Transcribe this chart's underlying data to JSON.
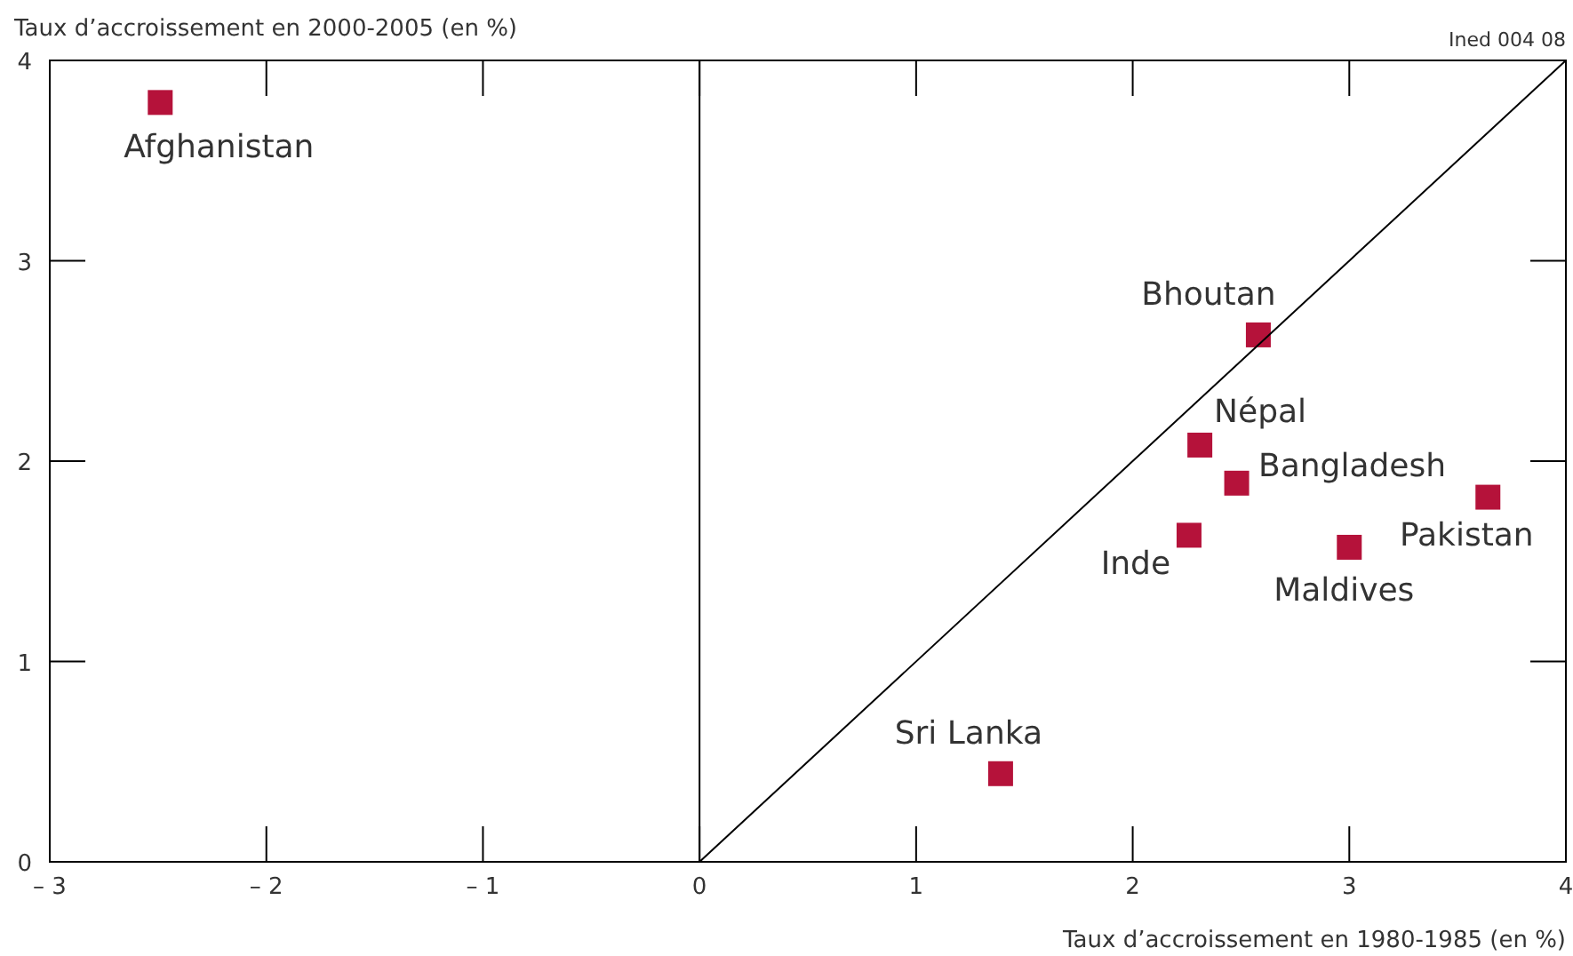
{
  "chart_data": {
    "type": "scatter",
    "xlabel": "Taux d’accroissement en 1980-1985 (en %)",
    "ylabel": "Taux d’accroissement en 2000-2005 (en %)",
    "xlim": [
      -3,
      4
    ],
    "ylim": [
      0,
      4
    ],
    "xticks": [
      {
        "value": -3,
        "label": "– 3"
      },
      {
        "value": -2,
        "label": "– 2"
      },
      {
        "value": -1,
        "label": "– 1"
      },
      0,
      1,
      2,
      3,
      4
    ],
    "yticks": [
      0,
      1,
      2,
      3,
      4
    ],
    "grid": false,
    "marker": "square",
    "series": [
      {
        "color": "#b5123a",
        "x": [
          -2.49,
          2.58,
          2.31,
          2.48,
          2.26,
          3.0,
          3.64,
          1.39
        ],
        "values": [
          3.79,
          2.63,
          2.08,
          1.89,
          1.63,
          1.57,
          1.82,
          0.44
        ]
      },
      {
        "type": "line",
        "marker": "none",
        "color": "#000000",
        "x": [
          0,
          4
        ],
        "values": [
          0,
          4
        ]
      }
    ],
    "ref_lines": [
      {
        "axis": "x",
        "value": 0,
        "color": "#000000"
      }
    ],
    "annotations": [
      {
        "text": "Afghanistan",
        "x": -2.49,
        "y": 3.79
      },
      {
        "text": "Bhoutan",
        "x": 2.58,
        "y": 2.63
      },
      {
        "text": "Népal",
        "x": 2.31,
        "y": 2.08
      },
      {
        "text": "Bangladesh",
        "x": 2.48,
        "y": 1.89
      },
      {
        "text": "Inde",
        "x": 2.26,
        "y": 1.63
      },
      {
        "text": "Maldives",
        "x": 3.0,
        "y": 1.57
      },
      {
        "text": "Pakistan",
        "x": 3.64,
        "y": 1.82
      },
      {
        "text": "Sri Lanka",
        "x": 1.39,
        "y": 0.44
      },
      "Ined 004 08"
    ]
  }
}
